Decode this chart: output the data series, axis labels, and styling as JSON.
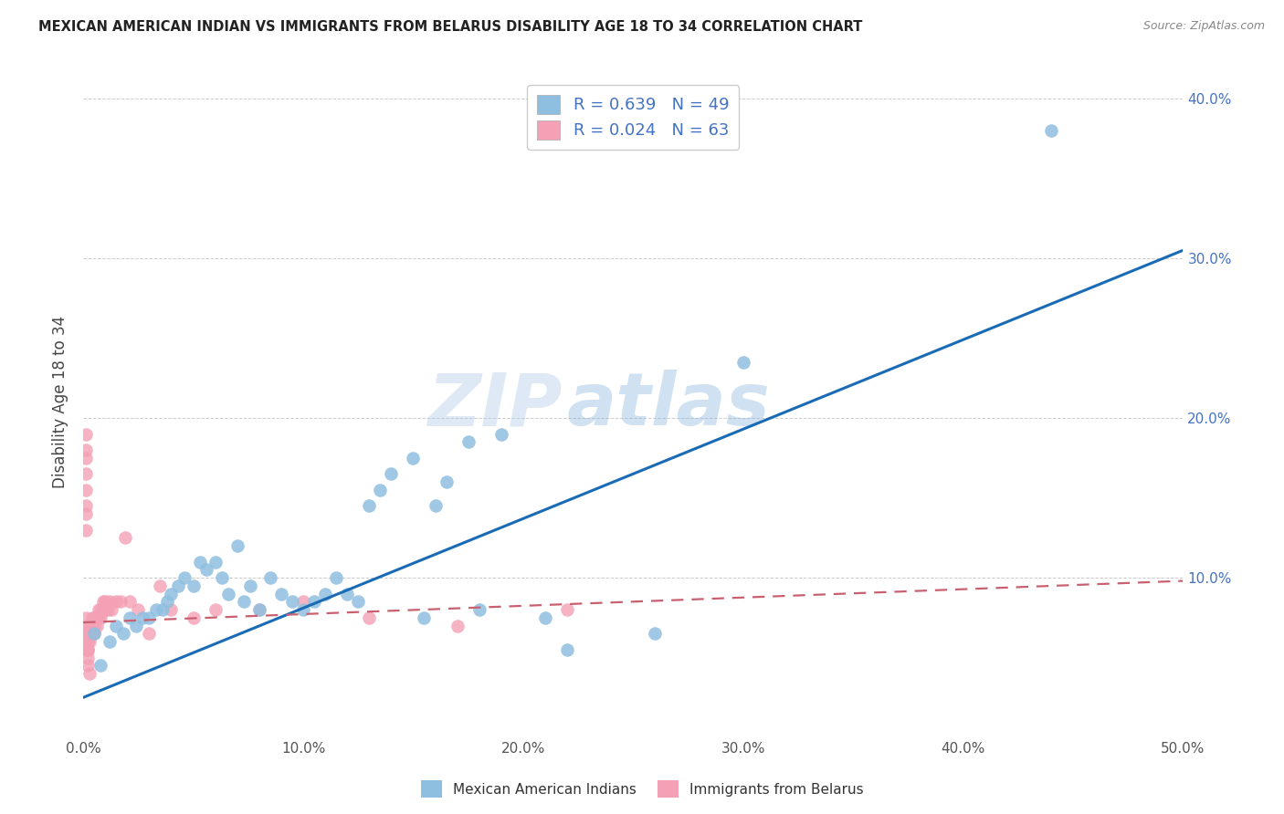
{
  "title": "MEXICAN AMERICAN INDIAN VS IMMIGRANTS FROM BELARUS DISABILITY AGE 18 TO 34 CORRELATION CHART",
  "source": "Source: ZipAtlas.com",
  "ylabel": "Disability Age 18 to 34",
  "xlabel": "",
  "xlim": [
    0.0,
    0.5
  ],
  "ylim": [
    0.0,
    0.42
  ],
  "xticks": [
    0.0,
    0.1,
    0.2,
    0.3,
    0.4,
    0.5
  ],
  "yticks": [
    0.0,
    0.1,
    0.2,
    0.3,
    0.4
  ],
  "xtick_labels": [
    "0.0%",
    "10.0%",
    "20.0%",
    "30.0%",
    "40.0%",
    "50.0%"
  ],
  "ytick_labels_left": [
    "",
    "",
    "",
    "",
    ""
  ],
  "ytick_labels_right": [
    "",
    "10.0%",
    "20.0%",
    "30.0%",
    "40.0%"
  ],
  "blue_line_x": [
    0.0,
    0.5
  ],
  "blue_line_y": [
    0.025,
    0.305
  ],
  "pink_line_x": [
    0.0,
    0.5
  ],
  "pink_line_y": [
    0.072,
    0.098
  ],
  "blue_color": "#8fbfe0",
  "pink_color": "#f4a0b5",
  "blue_line_color": "#1a6bb5",
  "pink_line_color": "#c96070",
  "watermark_zip": "ZIP",
  "watermark_atlas": "atlas",
  "legend_label1": "Mexican American Indians",
  "legend_label2": "Immigrants from Belarus",
  "legend_r1": "R = 0.639",
  "legend_n1": "N = 49",
  "legend_r2": "R = 0.024",
  "legend_n2": "N = 63",
  "blue_x": [
    0.005,
    0.008,
    0.012,
    0.015,
    0.018,
    0.021,
    0.024,
    0.027,
    0.03,
    0.033,
    0.036,
    0.038,
    0.04,
    0.043,
    0.046,
    0.05,
    0.053,
    0.056,
    0.06,
    0.063,
    0.066,
    0.07,
    0.073,
    0.076,
    0.08,
    0.085,
    0.09,
    0.095,
    0.1,
    0.105,
    0.11,
    0.115,
    0.12,
    0.125,
    0.13,
    0.135,
    0.14,
    0.15,
    0.155,
    0.16,
    0.165,
    0.175,
    0.18,
    0.19,
    0.21,
    0.22,
    0.26,
    0.3,
    0.44
  ],
  "blue_y": [
    0.065,
    0.045,
    0.06,
    0.07,
    0.065,
    0.075,
    0.07,
    0.075,
    0.075,
    0.08,
    0.08,
    0.085,
    0.09,
    0.095,
    0.1,
    0.095,
    0.11,
    0.105,
    0.11,
    0.1,
    0.09,
    0.12,
    0.085,
    0.095,
    0.08,
    0.1,
    0.09,
    0.085,
    0.08,
    0.085,
    0.09,
    0.1,
    0.09,
    0.085,
    0.145,
    0.155,
    0.165,
    0.175,
    0.075,
    0.145,
    0.16,
    0.185,
    0.08,
    0.19,
    0.075,
    0.055,
    0.065,
    0.235,
    0.38
  ],
  "pink_x": [
    0.001,
    0.001,
    0.001,
    0.001,
    0.001,
    0.001,
    0.002,
    0.002,
    0.002,
    0.002,
    0.002,
    0.002,
    0.003,
    0.003,
    0.003,
    0.003,
    0.004,
    0.004,
    0.004,
    0.005,
    0.005,
    0.005,
    0.006,
    0.006,
    0.007,
    0.007,
    0.008,
    0.008,
    0.009,
    0.009,
    0.01,
    0.01,
    0.011,
    0.012,
    0.013,
    0.015,
    0.017,
    0.019,
    0.021,
    0.025,
    0.03,
    0.035,
    0.04,
    0.05,
    0.06,
    0.08,
    0.1,
    0.13,
    0.17,
    0.22,
    0.001,
    0.001,
    0.001,
    0.001,
    0.001,
    0.001,
    0.001,
    0.001,
    0.001,
    0.002,
    0.002,
    0.002,
    0.003
  ],
  "pink_y": [
    0.06,
    0.065,
    0.07,
    0.055,
    0.06,
    0.065,
    0.055,
    0.06,
    0.065,
    0.055,
    0.06,
    0.065,
    0.06,
    0.065,
    0.07,
    0.065,
    0.065,
    0.07,
    0.075,
    0.065,
    0.07,
    0.075,
    0.075,
    0.07,
    0.075,
    0.08,
    0.075,
    0.08,
    0.08,
    0.085,
    0.08,
    0.085,
    0.08,
    0.085,
    0.08,
    0.085,
    0.085,
    0.125,
    0.085,
    0.08,
    0.065,
    0.095,
    0.08,
    0.075,
    0.08,
    0.08,
    0.085,
    0.075,
    0.07,
    0.08,
    0.19,
    0.18,
    0.175,
    0.165,
    0.155,
    0.145,
    0.14,
    0.13,
    0.075,
    0.055,
    0.05,
    0.045,
    0.04
  ]
}
